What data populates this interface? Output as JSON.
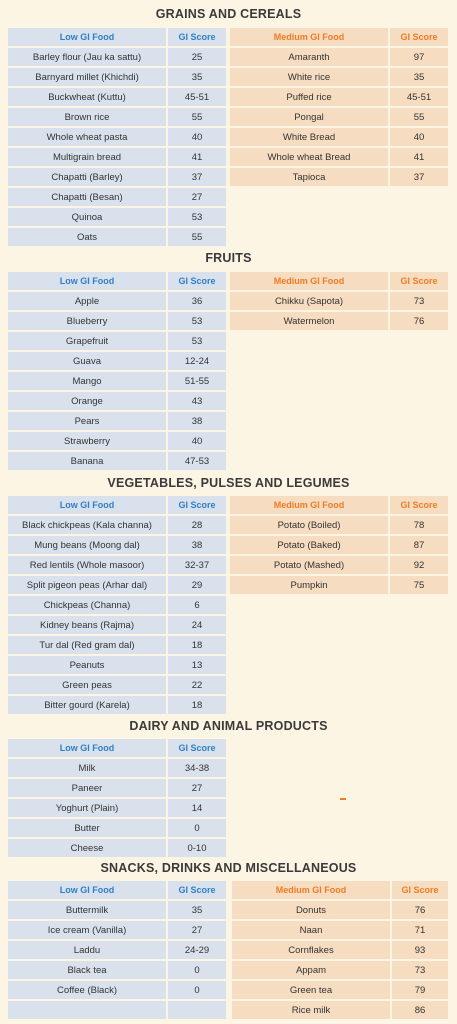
{
  "sections": [
    {
      "title": "GRAINS AND CEREALS",
      "low": {
        "header": {
          "food": "Low GI Food",
          "score": "GI Score"
        },
        "rows": [
          {
            "food": "Barley flour (Jau ka sattu)",
            "score": "25"
          },
          {
            "food": "Barnyard millet (Khichdi)",
            "score": "35"
          },
          {
            "food": "Buckwheat (Kuttu)",
            "score": "45-51"
          },
          {
            "food": "Brown rice",
            "score": "55"
          },
          {
            "food": "Whole wheat pasta",
            "score": "40"
          },
          {
            "food": "Multigrain bread",
            "score": "41"
          },
          {
            "food": "Chapatti (Barley)",
            "score": "37"
          },
          {
            "food": "Chapatti (Besan)",
            "score": "27"
          },
          {
            "food": "Quinoa",
            "score": "53"
          },
          {
            "food": "Oats",
            "score": "55"
          }
        ]
      },
      "medium": {
        "header": {
          "food": "Medium GI Food",
          "score": "GI Score"
        },
        "rows": [
          {
            "food": "Amaranth",
            "score": "97"
          },
          {
            "food": "White rice",
            "score": "35"
          },
          {
            "food": "Puffed rice",
            "score": "45-51"
          },
          {
            "food": "Pongal",
            "score": "55"
          },
          {
            "food": "White Bread",
            "score": "40"
          },
          {
            "food": "Whole wheat Bread",
            "score": "41"
          },
          {
            "food": "Tapioca",
            "score": "37"
          }
        ]
      }
    },
    {
      "title": "FRUITS",
      "low": {
        "header": {
          "food": "Low GI Food",
          "score": "GI Score"
        },
        "rows": [
          {
            "food": "Apple",
            "score": "36"
          },
          {
            "food": "Blueberry",
            "score": "53"
          },
          {
            "food": "Grapefruit",
            "score": "53"
          },
          {
            "food": "Guava",
            "score": "12-24"
          },
          {
            "food": "Mango",
            "score": "51-55"
          },
          {
            "food": "Orange",
            "score": "43"
          },
          {
            "food": "Pears",
            "score": "38"
          },
          {
            "food": "Strawberry",
            "score": "40"
          },
          {
            "food": "Banana",
            "score": "47-53"
          }
        ]
      },
      "medium": {
        "header": {
          "food": "Medium GI Food",
          "score": "GI Score"
        },
        "rows": [
          {
            "food": "Chikku (Sapota)",
            "score": "73"
          },
          {
            "food": "Watermelon",
            "score": "76"
          }
        ]
      }
    },
    {
      "title": "VEGETABLES, PULSES AND LEGUMES",
      "low": {
        "header": {
          "food": "Low GI Food",
          "score": "GI Score"
        },
        "rows": [
          {
            "food": "Black chickpeas (Kala channa)",
            "score": "28"
          },
          {
            "food": "Mung beans (Moong dal)",
            "score": "38"
          },
          {
            "food": "Red lentils (Whole masoor)",
            "score": "32-37"
          },
          {
            "food": "Split pigeon peas (Arhar dal)",
            "score": "29"
          },
          {
            "food": "Chickpeas (Channa)",
            "score": "6"
          },
          {
            "food": "Kidney beans (Rajma)",
            "score": "24"
          },
          {
            "food": "Tur dal (Red gram dal)",
            "score": "18"
          },
          {
            "food": "Peanuts",
            "score": "13"
          },
          {
            "food": "Green peas",
            "score": "22"
          },
          {
            "food": "Bitter gourd (Karela)",
            "score": "18"
          }
        ]
      },
      "medium": {
        "header": {
          "food": "Medium GI Food",
          "score": "GI Score"
        },
        "rows": [
          {
            "food": "Potato (Boiled)",
            "score": "78"
          },
          {
            "food": "Potato (Baked)",
            "score": "87"
          },
          {
            "food": "Potato (Mashed)",
            "score": "92"
          },
          {
            "food": "Pumpkin",
            "score": "75"
          }
        ]
      }
    },
    {
      "title": "DAIRY AND ANIMAL PRODUCTS",
      "low": {
        "header": {
          "food": "Low GI Food",
          "score": "GI Score"
        },
        "rows": [
          {
            "food": "Milk",
            "score": "34-38"
          },
          {
            "food": "Paneer",
            "score": "27"
          },
          {
            "food": "Yoghurt (Plain)",
            "score": "14"
          },
          {
            "food": "Butter",
            "score": "0"
          },
          {
            "food": "Cheese",
            "score": "0-10"
          }
        ]
      }
    },
    {
      "title": "SNACKS, DRINKS AND MISCELLANEOUS",
      "low": {
        "header": {
          "food": "Low GI Food",
          "score": "GI Score"
        },
        "rows": [
          {
            "food": "Buttermilk",
            "score": "35"
          },
          {
            "food": "Ice cream (Vanilla)",
            "score": "27"
          },
          {
            "food": "Laddu",
            "score": "24-29"
          },
          {
            "food": "Black tea",
            "score": "0"
          },
          {
            "food": "Coffee (Black)",
            "score": "0"
          },
          {
            "food": "",
            "score": ""
          }
        ]
      },
      "medium": {
        "header": {
          "food": "Medium GI Food",
          "score": "GI Score"
        },
        "rows": [
          {
            "food": "Donuts",
            "score": "76"
          },
          {
            "food": "Naan",
            "score": "71"
          },
          {
            "food": "Cornflakes",
            "score": "93"
          },
          {
            "food": "Appam",
            "score": "73"
          },
          {
            "food": "Green tea",
            "score": "79"
          },
          {
            "food": "Rice milk",
            "score": "86"
          }
        ]
      }
    }
  ]
}
